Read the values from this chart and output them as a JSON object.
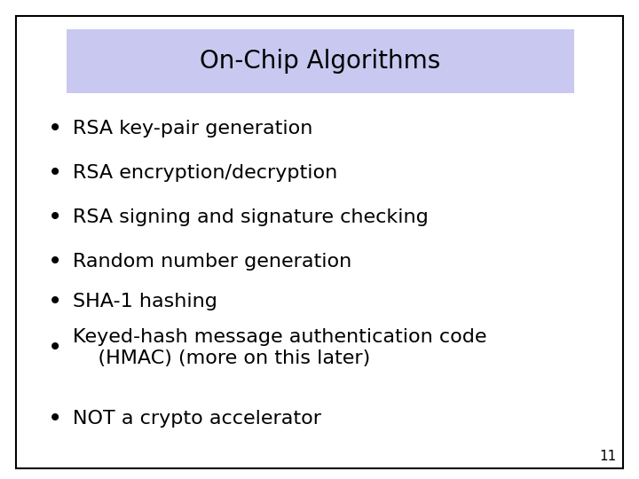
{
  "title": "On-Chip Algorithms",
  "title_bg_color": "#c8c8f0",
  "slide_bg_color": "#ffffff",
  "border_color": "#000000",
  "text_color": "#000000",
  "bullet_items": [
    "RSA key-pair generation",
    "RSA encryption/decryption",
    "RSA signing and signature checking",
    "Random number generation",
    "SHA-1 hashing",
    "Keyed-hash message authentication code\n    (HMAC) (more on this later)",
    "NOT a crypto accelerator"
  ],
  "page_number": "11",
  "title_fontsize": 20,
  "bullet_fontsize": 16,
  "page_num_fontsize": 11
}
